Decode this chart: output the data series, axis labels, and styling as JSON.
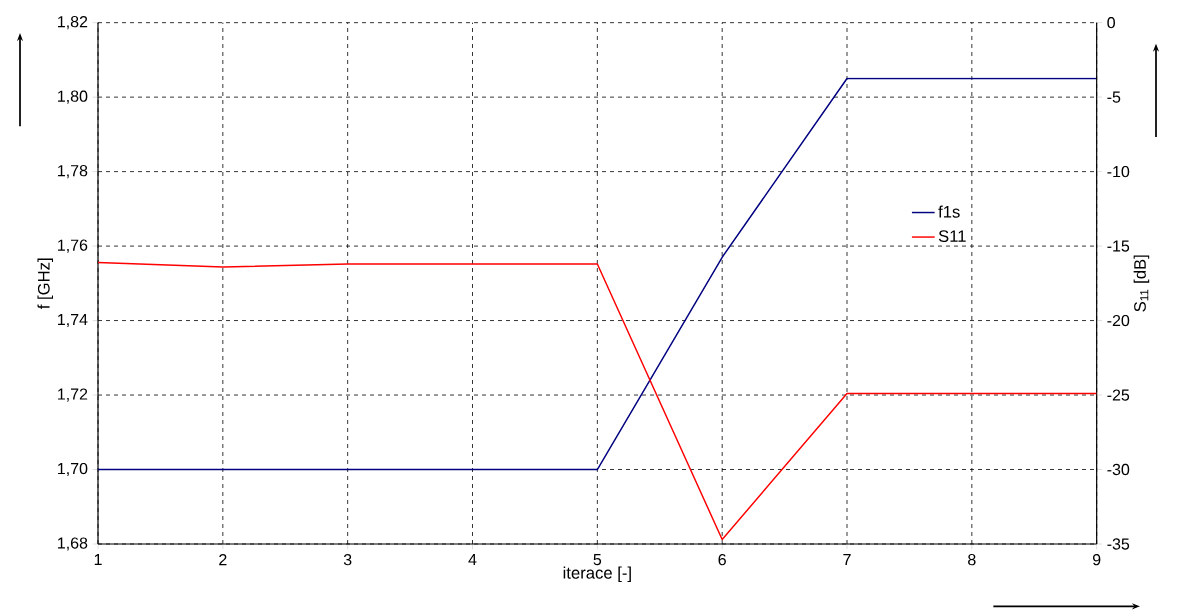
{
  "chart_data": {
    "type": "line",
    "x": [
      1,
      2,
      3,
      4,
      5,
      6,
      7,
      8,
      9
    ],
    "series": [
      {
        "name": "f1s",
        "color": "#000080",
        "values": [
          1.7,
          1.7,
          1.7,
          1.7,
          1.7,
          1.757,
          1.805,
          1.805,
          1.805
        ]
      },
      {
        "name": "S11",
        "color": "#ff0000",
        "axis": "y2",
        "values": [
          -16.1,
          -16.4,
          -16.2,
          -16.2,
          -16.2,
          -34.7,
          -24.9,
          -24.9,
          -24.9
        ]
      }
    ],
    "xlabel": "iterace [-]",
    "ylabel": "f [GHz]",
    "y2label": "S$_{11}$ [dB]",
    "xlim": [
      1,
      9
    ],
    "xticks": [
      1,
      2,
      3,
      4,
      5,
      6,
      7,
      8,
      9
    ],
    "ylim": [
      1.68,
      1.82
    ],
    "yticks": [
      {
        "value": 1.68,
        "label": "1,68"
      },
      {
        "value": 1.7,
        "label": "1,70"
      },
      {
        "value": 1.72,
        "label": "1,72"
      },
      {
        "value": 1.74,
        "label": "1,74"
      },
      {
        "value": 1.76,
        "label": "1,76"
      },
      {
        "value": 1.78,
        "label": "1,78"
      },
      {
        "value": 1.8,
        "label": "1,80"
      },
      {
        "value": 1.82,
        "label": "1,82"
      }
    ],
    "y2lim": [
      -35,
      0
    ],
    "y2ticks": [
      -35,
      -30,
      -25,
      -20,
      -15,
      -10,
      -5,
      0
    ],
    "grid": true,
    "legend": "right",
    "line_style": "solid",
    "marker": "none"
  }
}
